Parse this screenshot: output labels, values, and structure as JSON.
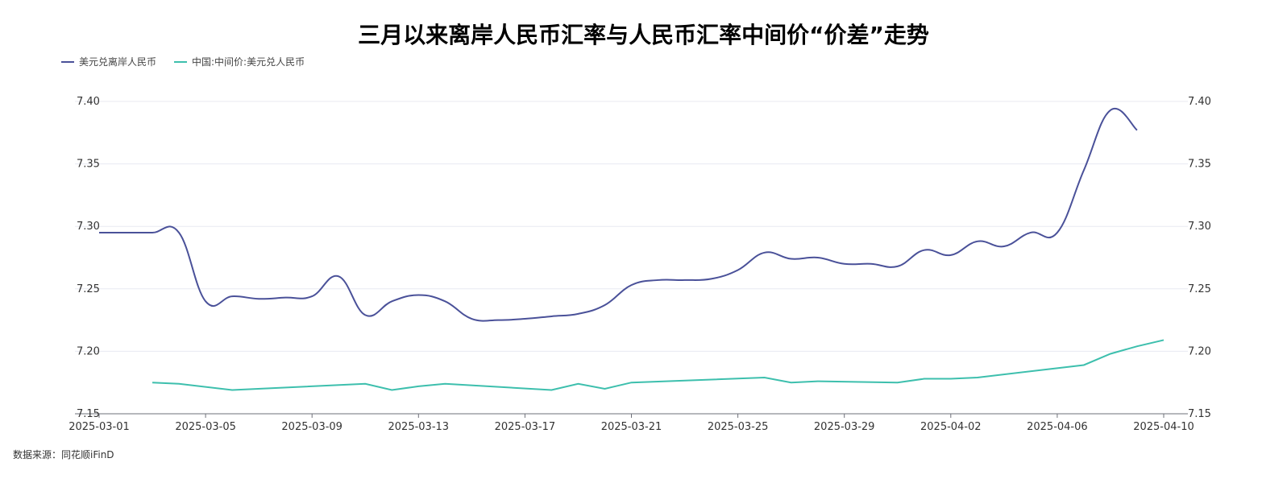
{
  "title": "三月以来离岸人民币汇率与人民币汇率中间价“价差”走势",
  "source": "数据来源：同花顺iFinD",
  "chart_data": {
    "type": "line",
    "title": "三月以来离岸人民币汇率与人民币汇率中间价“价差”走势",
    "legend_position": "top-left",
    "grid": true,
    "ylim": [
      7.15,
      7.4
    ],
    "yticks": [
      "7.40",
      "7.35",
      "7.30",
      "7.25",
      "7.20",
      "7.15"
    ],
    "xlim": [
      "2025-03-01",
      "2025-04-10"
    ],
    "xticks": [
      "2025-03-01",
      "2025-03-05",
      "2025-03-09",
      "2025-03-13",
      "2025-03-17",
      "2025-03-21",
      "2025-03-25",
      "2025-03-29",
      "2025-04-02",
      "2025-04-06",
      "2025-04-10"
    ],
    "series": [
      {
        "name": "美元兑离岸人民币",
        "color": "#4a5199",
        "smooth": true,
        "x": [
          "2025-03-01",
          "2025-03-02",
          "2025-03-03",
          "2025-03-04",
          "2025-03-05",
          "2025-03-06",
          "2025-03-07",
          "2025-03-08",
          "2025-03-09",
          "2025-03-10",
          "2025-03-11",
          "2025-03-12",
          "2025-03-13",
          "2025-03-14",
          "2025-03-15",
          "2025-03-16",
          "2025-03-17",
          "2025-03-18",
          "2025-03-19",
          "2025-03-20",
          "2025-03-21",
          "2025-03-22",
          "2025-03-23",
          "2025-03-24",
          "2025-03-25",
          "2025-03-26",
          "2025-03-27",
          "2025-03-28",
          "2025-03-29",
          "2025-03-30",
          "2025-03-31",
          "2025-04-01",
          "2025-04-02",
          "2025-04-03",
          "2025-04-04",
          "2025-04-05",
          "2025-04-06",
          "2025-04-07",
          "2025-04-08",
          "2025-04-09"
        ],
        "values": [
          7.295,
          7.295,
          7.295,
          7.295,
          7.24,
          7.244,
          7.242,
          7.243,
          7.244,
          7.26,
          7.229,
          7.24,
          7.245,
          7.24,
          7.226,
          7.225,
          7.226,
          7.228,
          7.23,
          7.237,
          7.253,
          7.257,
          7.257,
          7.258,
          7.265,
          7.279,
          7.274,
          7.275,
          7.27,
          7.27,
          7.268,
          7.281,
          7.277,
          7.288,
          7.284,
          7.295,
          7.295,
          7.345,
          7.393,
          7.377
        ]
      },
      {
        "name": "中国:中间价:美元兑人民币",
        "color": "#3dbfad",
        "smooth": false,
        "x": [
          "2025-03-03",
          "2025-03-04",
          "2025-03-06",
          "2025-03-11",
          "2025-03-12",
          "2025-03-13",
          "2025-03-14",
          "2025-03-18",
          "2025-03-19",
          "2025-03-20",
          "2025-03-21",
          "2025-03-26",
          "2025-03-27",
          "2025-03-28",
          "2025-03-31",
          "2025-04-01",
          "2025-04-02",
          "2025-04-03",
          "2025-04-07",
          "2025-04-08",
          "2025-04-09",
          "2025-04-10"
        ],
        "values": [
          7.175,
          7.174,
          7.169,
          7.174,
          7.169,
          7.172,
          7.174,
          7.169,
          7.174,
          7.17,
          7.175,
          7.179,
          7.175,
          7.176,
          7.175,
          7.178,
          7.178,
          7.179,
          7.189,
          7.198,
          7.204,
          7.209
        ]
      }
    ]
  }
}
